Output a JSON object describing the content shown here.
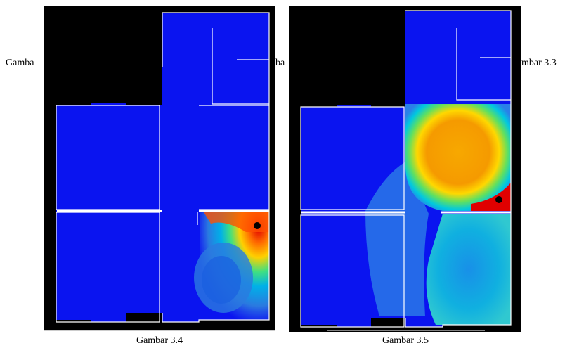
{
  "background_captions": {
    "left": "Gamba",
    "middle": "ba",
    "right": "mbar 3.3"
  },
  "figures": [
    {
      "caption": "Gambar 3.4"
    },
    {
      "caption": "Gambar 3.5"
    }
  ]
}
